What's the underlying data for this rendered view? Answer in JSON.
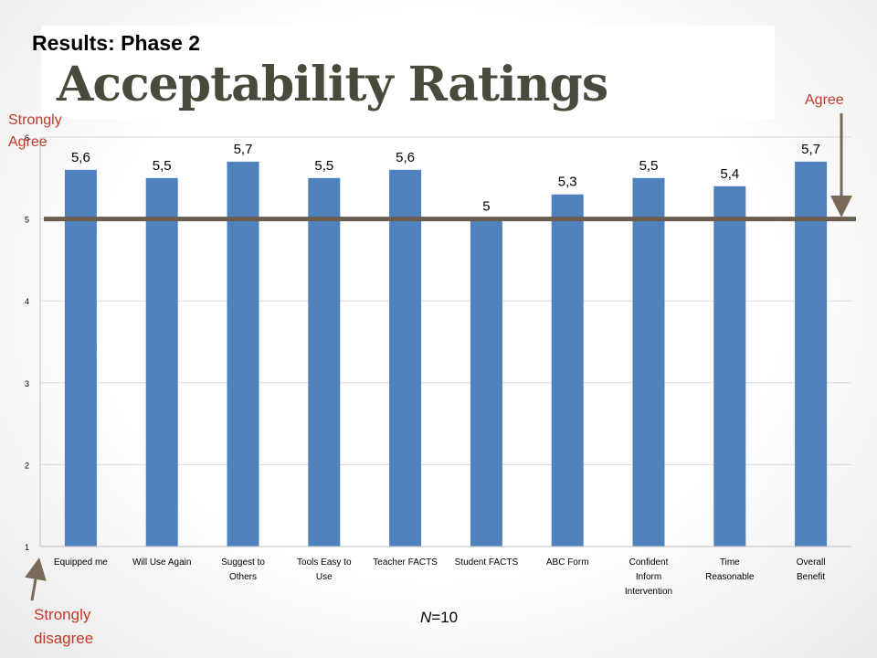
{
  "header": {
    "subtitle": "Results: Phase 2",
    "title": "Acceptability Ratings"
  },
  "annotations": {
    "strongly_agree": "Strongly Agree",
    "agree": "Agree",
    "strongly_disagree": "Strongly disagree",
    "n_prefix": "N",
    "n_suffix": "=10"
  },
  "colors": {
    "bar": "#4f81bd",
    "reference_line": "#6b5d4f",
    "annotation_text": "#c0392b",
    "arrow": "#7a6a5a",
    "grid": "#d9d9d9"
  },
  "chart_data": {
    "type": "bar",
    "categories": [
      "Equipped me",
      "Will Use Again",
      "Suggest to Others",
      "Tools Easy to Use",
      "Teacher FACTS",
      "Student FACTS",
      "ABC Form",
      "Confident Inform Intervention",
      "Time Reasonable",
      "Overall Benefit"
    ],
    "values": [
      5.6,
      5.5,
      5.7,
      5.5,
      5.6,
      5.0,
      5.3,
      5.5,
      5.4,
      5.7
    ],
    "data_labels": [
      "5,6",
      "5,5",
      "5,7",
      "5,5",
      "5,6",
      "5",
      "5,3",
      "5,5",
      "5,4",
      "5,7"
    ],
    "ylim": [
      1,
      6
    ],
    "yticks": [
      "1",
      "2",
      "3",
      "4",
      "5",
      "6"
    ],
    "reference_value": 5,
    "grid": true
  }
}
